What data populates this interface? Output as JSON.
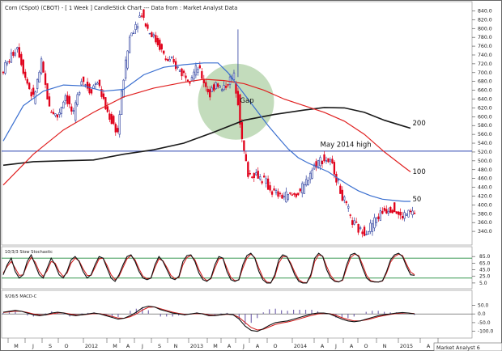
{
  "header": {
    "title": "Corn (CSpot) (CBOT) -   [ 1 Week ] CandleStick Chart --- Data from : Market Analyst Data"
  },
  "watermark": "Market Analyst 6",
  "colors": {
    "background": "#ffffff",
    "frame": "#666666",
    "up_candle": "#2c3e9e",
    "down_candle": "#e0001a",
    "ma50": "#3a6fd0",
    "ma100": "#e02020",
    "ma200": "#1a1a1a",
    "horizontal_line": "#2a44b0",
    "gap_circle": "#b8d6b0",
    "stoch_bands": "#1f8a3c",
    "stoch_k": "#111111",
    "stoch_d": "#d01818"
  },
  "chart_data": [
    {
      "type": "candlestick",
      "panel": "price",
      "title": "Corn (CSpot) (CBOT) -   [ 1 Week ] CandleStick Chart --- Data from : Market Analyst Data",
      "x_tick_labels": [
        "M",
        "J",
        "S",
        "O",
        "2012",
        "M",
        "A",
        "J",
        "S",
        "N",
        "2013",
        "M",
        "A",
        "J",
        "A",
        "O",
        "2014",
        "A",
        "J",
        "A",
        "O",
        "N",
        "2015",
        "A",
        "J"
      ],
      "y_tick_labels": [
        "840.0",
        "820.0",
        "800.0",
        "780.0",
        "760.0",
        "740.0",
        "720.0",
        "700.0",
        "680.0",
        "660.0",
        "640.0",
        "620.0",
        "600.0",
        "580.0",
        "560.0",
        "540.0",
        "520.0",
        "500.0",
        "480.0",
        "460.0",
        "440.0",
        "420.0",
        "400.0",
        "380.0",
        "360.0",
        "340.0"
      ],
      "ylim": [
        320,
        850
      ],
      "grid": false,
      "x_index_range": [
        0,
        205
      ],
      "ohlc_keypoints": [
        [
          0,
          700
        ],
        [
          4,
          730
        ],
        [
          8,
          760
        ],
        [
          12,
          690
        ],
        [
          16,
          640
        ],
        [
          20,
          720
        ],
        [
          24,
          620
        ],
        [
          28,
          600
        ],
        [
          32,
          650
        ],
        [
          36,
          600
        ],
        [
          40,
          690
        ],
        [
          44,
          660
        ],
        [
          48,
          680
        ],
        [
          52,
          620
        ],
        [
          55,
          590
        ],
        [
          58,
          565
        ],
        [
          61,
          690
        ],
        [
          64,
          780
        ],
        [
          67,
          810
        ],
        [
          70,
          835
        ],
        [
          73,
          800
        ],
        [
          76,
          780
        ],
        [
          79,
          760
        ],
        [
          82,
          730
        ],
        [
          86,
          720
        ],
        [
          90,
          700
        ],
        [
          94,
          690
        ],
        [
          98,
          710
        ],
        [
          101,
          680
        ],
        [
          104,
          650
        ],
        [
          107,
          680
        ],
        [
          110,
          660
        ],
        [
          113,
          680
        ],
        [
          116,
          690
        ],
        [
          118,
          640
        ],
        [
          120,
          545
        ],
        [
          123,
          470
        ],
        [
          127,
          470
        ],
        [
          131,
          455
        ],
        [
          135,
          430
        ],
        [
          139,
          420
        ],
        [
          143,
          420
        ],
        [
          147,
          425
        ],
        [
          151,
          440
        ],
        [
          154,
          475
        ],
        [
          157,
          495
        ],
        [
          160,
          505
        ],
        [
          163,
          500
        ],
        [
          166,
          480
        ],
        [
          169,
          430
        ],
        [
          172,
          395
        ],
        [
          175,
          360
        ],
        [
          179,
          340
        ],
        [
          183,
          345
        ],
        [
          187,
          370
        ],
        [
          191,
          390
        ],
        [
          195,
          395
        ],
        [
          199,
          372
        ],
        [
          203,
          382
        ]
      ],
      "moving_averages": [
        {
          "name": "50",
          "color": "#3a6fd0",
          "points": [
            [
              0,
              545
            ],
            [
              10,
              625
            ],
            [
              20,
              658
            ],
            [
              30,
              672
            ],
            [
              40,
              670
            ],
            [
              50,
              658
            ],
            [
              60,
              662
            ],
            [
              70,
              695
            ],
            [
              80,
              712
            ],
            [
              90,
              718
            ],
            [
              100,
              722
            ],
            [
              107,
              722
            ],
            [
              112,
              700
            ],
            [
              117,
              670
            ],
            [
              122,
              640
            ],
            [
              127,
              610
            ],
            [
              132,
              580
            ],
            [
              137,
              553
            ],
            [
              142,
              527
            ],
            [
              147,
              507
            ],
            [
              152,
              495
            ],
            [
              157,
              485
            ],
            [
              162,
              475
            ],
            [
              167,
              460
            ],
            [
              172,
              445
            ],
            [
              177,
              432
            ],
            [
              183,
              421
            ],
            [
              189,
              413
            ],
            [
              195,
              410
            ],
            [
              200,
              408
            ],
            [
              203,
              408
            ]
          ]
        },
        {
          "name": "100",
          "color": "#e02020",
          "points": [
            [
              0,
              445
            ],
            [
              15,
              515
            ],
            [
              30,
              570
            ],
            [
              45,
              610
            ],
            [
              60,
              645
            ],
            [
              75,
              665
            ],
            [
              90,
              678
            ],
            [
              100,
              685
            ],
            [
              110,
              682
            ],
            [
              120,
              675
            ],
            [
              130,
              660
            ],
            [
              140,
              640
            ],
            [
              150,
              625
            ],
            [
              160,
              610
            ],
            [
              170,
              590
            ],
            [
              180,
              560
            ],
            [
              190,
              520
            ],
            [
              200,
              485
            ],
            [
              203,
              475
            ]
          ]
        },
        {
          "name": "200",
          "color": "#1a1a1a",
          "points": [
            [
              0,
              490
            ],
            [
              15,
              498
            ],
            [
              30,
              500
            ],
            [
              45,
              502
            ],
            [
              60,
              515
            ],
            [
              75,
              525
            ],
            [
              90,
              540
            ],
            [
              105,
              565
            ],
            [
              120,
              592
            ],
            [
              135,
              605
            ],
            [
              150,
              615
            ],
            [
              160,
              621
            ],
            [
              170,
              620
            ],
            [
              180,
              610
            ],
            [
              190,
              592
            ],
            [
              200,
              578
            ],
            [
              203,
              574
            ]
          ]
        }
      ],
      "horizontal_line": {
        "y": 522,
        "label": "May 2014 high"
      },
      "annotations": [
        {
          "text": "Gap",
          "x": 118,
          "y": 632
        },
        {
          "text": "May 2014 high",
          "x": 158,
          "y": 532
        },
        {
          "text": "200",
          "x": 204,
          "y": 580
        },
        {
          "text": "100",
          "x": 204,
          "y": 470
        },
        {
          "text": "50",
          "x": 204,
          "y": 408
        }
      ],
      "highlight_circle": {
        "center_x": 116,
        "center_y": 634,
        "radius_x": 31,
        "radius_y": 90
      }
    },
    {
      "type": "line",
      "panel": "stochastic",
      "title": "10/3/3 Slow Stochastic",
      "y_tick_labels": [
        "85.0",
        "65.0",
        "45.0",
        "25.0",
        "5.0"
      ],
      "ylim": [
        -5,
        105
      ],
      "band_levels": [
        80,
        20
      ],
      "series": [
        {
          "name": "%K",
          "color": "#111111",
          "values": [
            30,
            60,
            80,
            40,
            20,
            30,
            70,
            90,
            60,
            30,
            20,
            50,
            80,
            60,
            30,
            20,
            40,
            75,
            85,
            70,
            40,
            20,
            30,
            60,
            85,
            80,
            50,
            20,
            10,
            30,
            60,
            85,
            90,
            70,
            40,
            20,
            15,
            20,
            60,
            85,
            70,
            45,
            20,
            15,
            25,
            70,
            88,
            90,
            70,
            35,
            15,
            10,
            20,
            60,
            85,
            80,
            40,
            15,
            10,
            15,
            60,
            88,
            95,
            80,
            40,
            15,
            5,
            5,
            30,
            75,
            90,
            85,
            60,
            30,
            10,
            5,
            5,
            30,
            80,
            95,
            85,
            45,
            20,
            10,
            8,
            15,
            60,
            90,
            95,
            85,
            50,
            20,
            10,
            8,
            8,
            12,
            40,
            75,
            90,
            95,
            85,
            55,
            30,
            28
          ]
        },
        {
          "name": "%D",
          "color": "#d01818",
          "values": [
            35,
            55,
            70,
            50,
            28,
            30,
            60,
            82,
            68,
            40,
            25,
            42,
            70,
            65,
            40,
            25,
            35,
            65,
            80,
            72,
            48,
            28,
            28,
            52,
            78,
            80,
            58,
            30,
            15,
            25,
            52,
            78,
            88,
            75,
            48,
            25,
            18,
            20,
            52,
            78,
            72,
            52,
            28,
            18,
            22,
            60,
            82,
            88,
            75,
            45,
            22,
            12,
            18,
            50,
            78,
            80,
            50,
            22,
            12,
            14,
            50,
            80,
            92,
            82,
            50,
            22,
            8,
            6,
            24,
            65,
            85,
            85,
            65,
            38,
            15,
            7,
            6,
            24,
            70,
            90,
            86,
            55,
            28,
            12,
            9,
            13,
            50,
            82,
            92,
            88,
            60,
            28,
            12,
            9,
            8,
            11,
            35,
            68,
            85,
            92,
            88,
            62,
            38,
            30
          ]
        }
      ]
    },
    {
      "type": "line",
      "panel": "macd",
      "title": "9/26/5 MACD-C",
      "y_tick_labels": [
        "50.0",
        "0.0",
        "-50.0",
        "-100.0"
      ],
      "ylim": [
        -120,
        75
      ],
      "series": [
        {
          "name": "MACD",
          "color": "#111111",
          "values": [
            10,
            15,
            20,
            15,
            5,
            -5,
            -10,
            -5,
            5,
            10,
            5,
            -5,
            -10,
            -5,
            0,
            5,
            0,
            -10,
            -20,
            -30,
            -25,
            -10,
            10,
            35,
            45,
            40,
            25,
            15,
            5,
            0,
            -5,
            0,
            5,
            0,
            -10,
            -10,
            -5,
            0,
            -5,
            -30,
            -70,
            -95,
            -100,
            -85,
            -65,
            -50,
            -45,
            -40,
            -30,
            -20,
            -10,
            0,
            5,
            5,
            0,
            -15,
            -30,
            -40,
            -45,
            -40,
            -30,
            -20,
            -10,
            -5,
            0,
            5,
            8,
            5,
            0
          ]
        },
        {
          "name": "Signal",
          "color": "#d01818",
          "values": [
            8,
            12,
            16,
            15,
            8,
            0,
            -6,
            -6,
            0,
            6,
            6,
            0,
            -6,
            -6,
            -2,
            2,
            1,
            -6,
            -14,
            -24,
            -25,
            -16,
            0,
            22,
            38,
            40,
            30,
            20,
            10,
            3,
            -2,
            -1,
            2,
            1,
            -6,
            -8,
            -6,
            -2,
            -4,
            -20,
            -50,
            -78,
            -92,
            -88,
            -74,
            -60,
            -52,
            -46,
            -38,
            -28,
            -18,
            -8,
            0,
            3,
            1,
            -8,
            -22,
            -32,
            -40,
            -40,
            -34,
            -26,
            -16,
            -9,
            -3,
            2,
            5,
            5,
            2
          ]
        }
      ]
    }
  ]
}
